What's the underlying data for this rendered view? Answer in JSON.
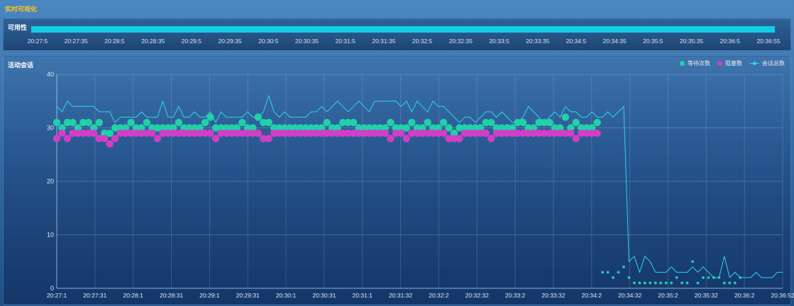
{
  "app": {
    "title": "实时可视化"
  },
  "availability": {
    "title": "可用性",
    "color": "#14cde4",
    "ticks": [
      "20:27:5",
      "20:27:35",
      "20:28:5",
      "20:28:35",
      "20:29:5",
      "20:29:35",
      "20:30:5",
      "20:30:35",
      "20:31:5",
      "20:31:35",
      "20:32:5",
      "20:32:35",
      "20:33:5",
      "20:33:35",
      "20:34:5",
      "20:34:35",
      "20:35:5",
      "20:35:35",
      "20:36:5",
      "20:36:55"
    ]
  },
  "activity": {
    "title": "活动会话",
    "legend": [
      "等待次数",
      "阻塞数",
      "会话总数"
    ]
  },
  "chart_data": {
    "type": "line",
    "title": "活动会话",
    "xlabel": "",
    "ylabel": "",
    "ylim": [
      0,
      40
    ],
    "yticks": [
      0,
      10,
      20,
      30,
      40
    ],
    "grid": true,
    "legend_position": "top-right",
    "x_tick_labels": [
      "20:27:1",
      "20:27:31",
      "20:28:1",
      "20:28:31",
      "20:29:1",
      "20:29:31",
      "20:30:1",
      "20:30:31",
      "20:31:1",
      "20:31:32",
      "20:32:2",
      "20:32:32",
      "20:33:2",
      "20:33:32",
      "20:34:2",
      "20:34:32",
      "20:35:2",
      "20:35:32",
      "20:36:2",
      "20:36:52"
    ],
    "x_start": "20:27:01",
    "x_end": "20:36:52",
    "series": [
      {
        "name": "会话总数",
        "color": "#2fd4ec",
        "marker": "line",
        "values": [
          34,
          33,
          35,
          34,
          34,
          34,
          34,
          34,
          33,
          33,
          33,
          31,
          32,
          32,
          32,
          32,
          33,
          32,
          32,
          32,
          35,
          32,
          32,
          34,
          32,
          32,
          33,
          32,
          32,
          33,
          31,
          33,
          32,
          32,
          32,
          32,
          33,
          32,
          32,
          33,
          36,
          33,
          32,
          33,
          32,
          32,
          32,
          32,
          33,
          33,
          34,
          33,
          34,
          35,
          34,
          33,
          34,
          35,
          34,
          33,
          35,
          35,
          35,
          35,
          35,
          34,
          35,
          33,
          35,
          34,
          33,
          35,
          34,
          34,
          33,
          32,
          31,
          32,
          32,
          31,
          32,
          33,
          33,
          32,
          33,
          32,
          31,
          31,
          32,
          34,
          33,
          32,
          31,
          32,
          33,
          32,
          34,
          33,
          33,
          32,
          32,
          33,
          32,
          32,
          33,
          32,
          33,
          34,
          5,
          6,
          3,
          6,
          5,
          3,
          3,
          3,
          4,
          3,
          3,
          3,
          4,
          3,
          4,
          3,
          2,
          2,
          6,
          2,
          3,
          2,
          2,
          2,
          3,
          2,
          2,
          2,
          3,
          3
        ]
      },
      {
        "name": "等待次数",
        "color": "#21d1a8",
        "marker": "circle",
        "values": [
          31,
          30,
          31,
          31,
          30,
          31,
          31,
          30,
          31,
          29,
          29,
          30,
          30,
          30,
          31,
          30,
          30,
          31,
          30,
          30,
          30,
          30,
          30,
          31,
          30,
          30,
          30,
          30,
          31,
          32,
          30,
          30,
          30,
          30,
          30,
          31,
          30,
          30,
          32,
          31,
          31,
          30,
          30,
          30,
          30,
          30,
          30,
          30,
          30,
          30,
          30,
          31,
          30,
          30,
          31,
          31,
          31,
          30,
          30,
          30,
          30,
          30,
          30,
          31,
          30,
          30,
          30,
          31,
          30,
          30,
          31,
          30,
          30,
          31,
          30,
          29,
          30,
          30,
          30,
          30,
          30,
          31,
          31,
          30,
          30,
          30,
          30,
          31,
          31,
          30,
          30,
          31,
          31,
          31,
          30,
          30,
          32,
          30,
          31,
          30,
          30,
          30,
          31,
          3,
          3,
          2,
          3,
          4,
          2,
          1,
          1,
          1,
          1,
          1,
          1,
          1,
          1,
          2,
          1,
          1,
          5,
          1,
          2,
          2,
          2,
          2,
          1,
          1,
          1,
          2
        ]
      },
      {
        "name": "阻塞数",
        "color": "#d23ec7",
        "marker": "circle",
        "values": [
          28,
          29,
          28,
          29,
          29,
          29,
          29,
          29,
          28,
          28,
          27,
          28,
          29,
          29,
          29,
          29,
          29,
          29,
          29,
          28,
          29,
          29,
          29,
          29,
          29,
          29,
          29,
          29,
          29,
          29,
          28,
          29,
          29,
          29,
          29,
          29,
          29,
          29,
          29,
          28,
          28,
          29,
          29,
          29,
          29,
          29,
          29,
          29,
          29,
          29,
          29,
          29,
          29,
          29,
          29,
          29,
          29,
          29,
          29,
          29,
          29,
          29,
          29,
          28,
          29,
          29,
          28,
          29,
          29,
          29,
          29,
          29,
          29,
          29,
          28,
          28,
          28,
          29,
          29,
          29,
          29,
          29,
          28,
          29,
          29,
          29,
          29,
          29,
          29,
          29,
          29,
          29,
          29,
          29,
          29,
          29,
          29,
          29,
          28,
          29,
          29,
          29,
          29
        ]
      }
    ]
  }
}
